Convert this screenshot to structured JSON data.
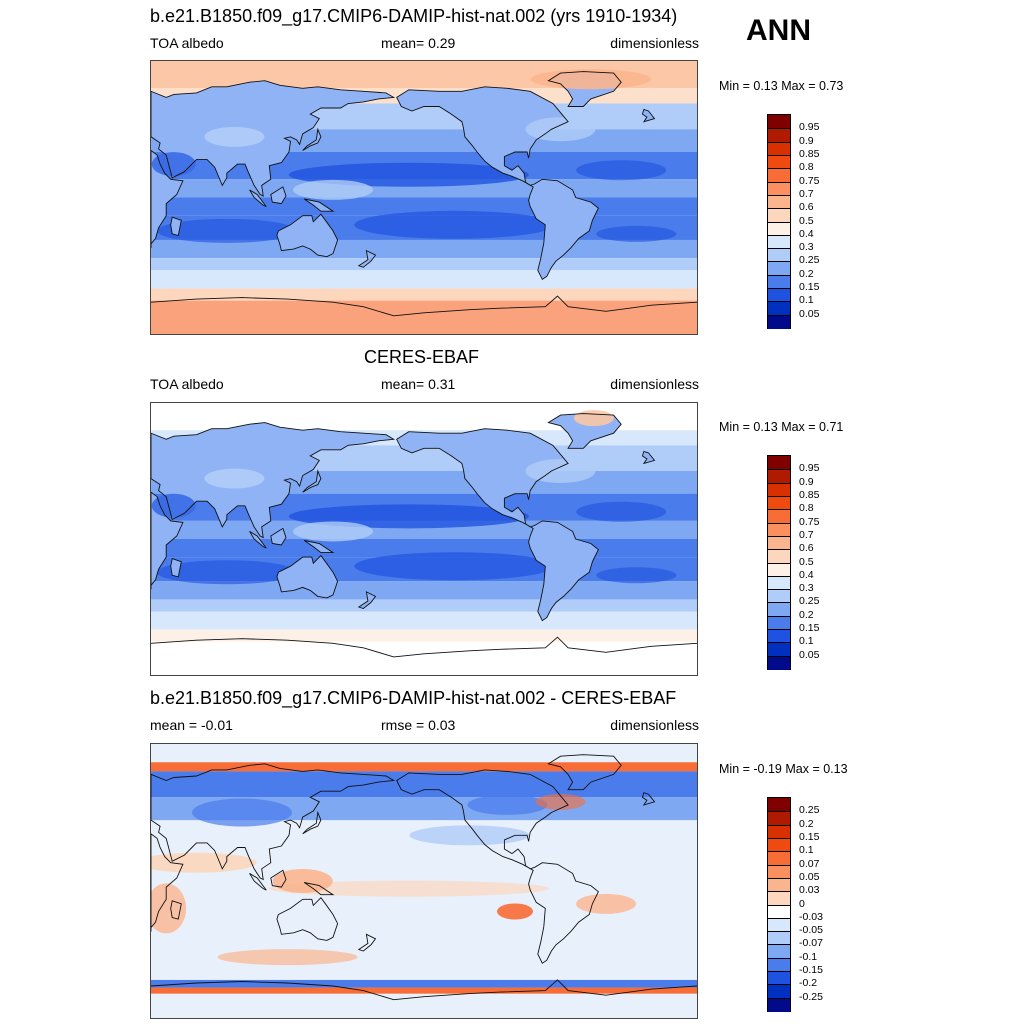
{
  "season": "ANN",
  "panels": [
    {
      "title": "b.e21.B1850.f09_g17.CMIP6-DAMIP-hist-nat.002 (yrs 1910-1934)",
      "left": "TOA albedo",
      "mid": "mean=   0.29",
      "right": "dimensionless",
      "minmax": "Min =   0.13 Max =   0.73",
      "levels": [
        "0.95",
        "0.9",
        "0.85",
        "0.8",
        "0.75",
        "0.7",
        "0.6",
        "0.5",
        "0.4",
        "0.3",
        "0.25",
        "0.2",
        "0.15",
        "0.1",
        "0.05"
      ],
      "colors": [
        "#800000",
        "#b01a00",
        "#d93000",
        "#f04a10",
        "#f86c35",
        "#fa9060",
        "#fbb58e",
        "#fcd6bd",
        "#fdf0e6",
        "#d8e8fc",
        "#b0ccf8",
        "#7ea8f2",
        "#4a7cec",
        "#1f52e0",
        "#0030c0",
        "#000a8a"
      ],
      "map_kind": "model"
    },
    {
      "title": "CERES-EBAF",
      "left": "TOA albedo",
      "mid": "mean=   0.31",
      "right": "dimensionless",
      "minmax": "Min =   0.13 Max =   0.71",
      "levels": [
        "0.95",
        "0.9",
        "0.85",
        "0.8",
        "0.75",
        "0.7",
        "0.6",
        "0.5",
        "0.4",
        "0.3",
        "0.25",
        "0.2",
        "0.15",
        "0.1",
        "0.05"
      ],
      "colors": [
        "#800000",
        "#b01a00",
        "#d93000",
        "#f04a10",
        "#f86c35",
        "#fa9060",
        "#fbb58e",
        "#fcd6bd",
        "#fdf0e6",
        "#d8e8fc",
        "#b0ccf8",
        "#7ea8f2",
        "#4a7cec",
        "#1f52e0",
        "#0030c0",
        "#000a8a"
      ],
      "map_kind": "obs"
    },
    {
      "title": "b.e21.B1850.f09_g17.CMIP6-DAMIP-hist-nat.002 - CERES-EBAF",
      "left": "mean =  -0.01",
      "mid": "rmse =   0.03",
      "right": "dimensionless",
      "minmax": "Min =  -0.19 Max =   0.13",
      "levels": [
        "0.25",
        "0.2",
        "0.15",
        "0.1",
        "0.07",
        "0.05",
        "0.03",
        "0",
        "-0.03",
        "-0.05",
        "-0.07",
        "-0.1",
        "-0.15",
        "-0.2",
        "-0.25"
      ],
      "colors": [
        "#800000",
        "#b01a00",
        "#d93000",
        "#f04a10",
        "#f86c35",
        "#fa9060",
        "#fbb58e",
        "#fcd6bd",
        "#ffffff",
        "#d8e8fc",
        "#b0ccf8",
        "#7ea8f2",
        "#4a7cec",
        "#1f52e0",
        "#0030c0",
        "#000a8a"
      ],
      "map_kind": "diff"
    }
  ]
}
